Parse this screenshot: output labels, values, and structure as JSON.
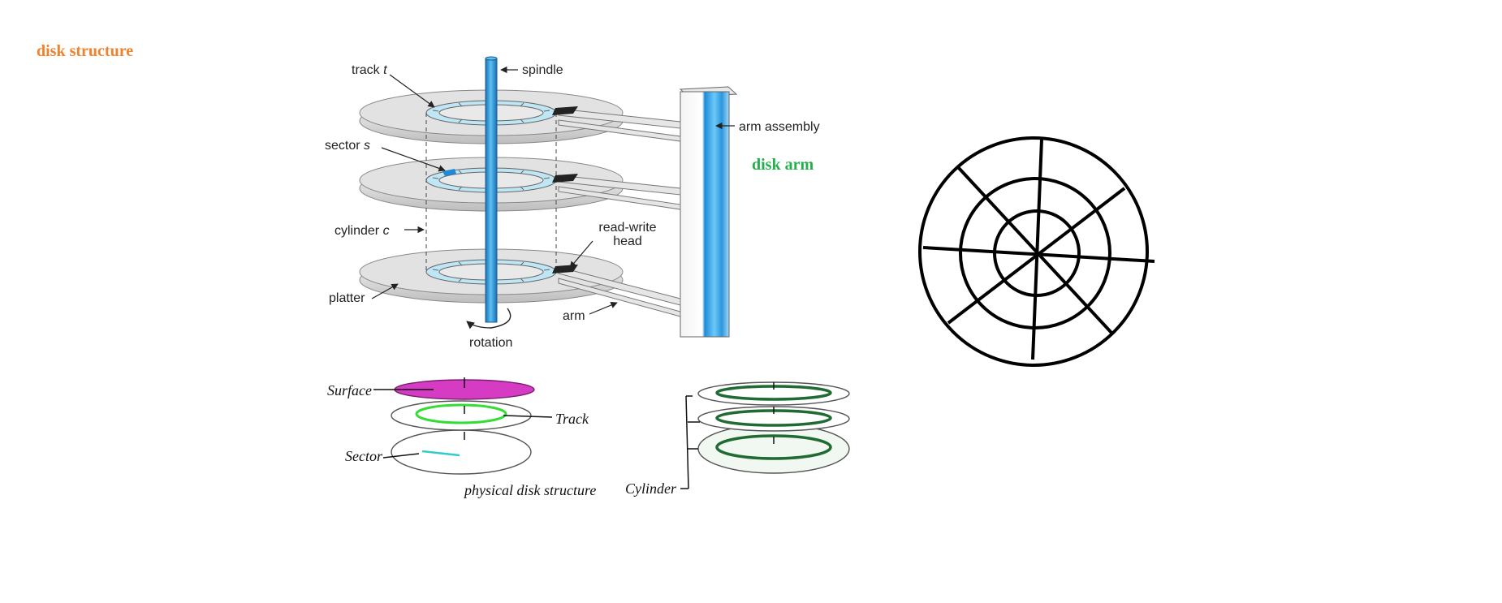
{
  "notes": {
    "title": "disk structure",
    "arm": "disk arm"
  },
  "colors": {
    "title": "#f0822c",
    "arm_note": "#22b04a",
    "spindle": "#2f9fe0",
    "surface": "#d63bc4",
    "track_green": "#33dd33",
    "sector_cyan": "#33cccc",
    "cylinder_green": "#1f6b32"
  },
  "diagram_main": {
    "track": "track ",
    "track_var": "t",
    "spindle": "spindle",
    "arm_assembly": "arm assembly",
    "sector": "sector ",
    "sector_var": "s",
    "cylinder": "cylinder ",
    "cylinder_var": "c",
    "read_write_1": "read-write",
    "read_write_2": "head",
    "platter": "platter",
    "arm": "arm",
    "rotation": "rotation"
  },
  "diagram_physical": {
    "surface": "Surface",
    "track": "Track",
    "sector": "Sector",
    "caption": "physical disk structure",
    "cylinder": "Cylinder"
  }
}
